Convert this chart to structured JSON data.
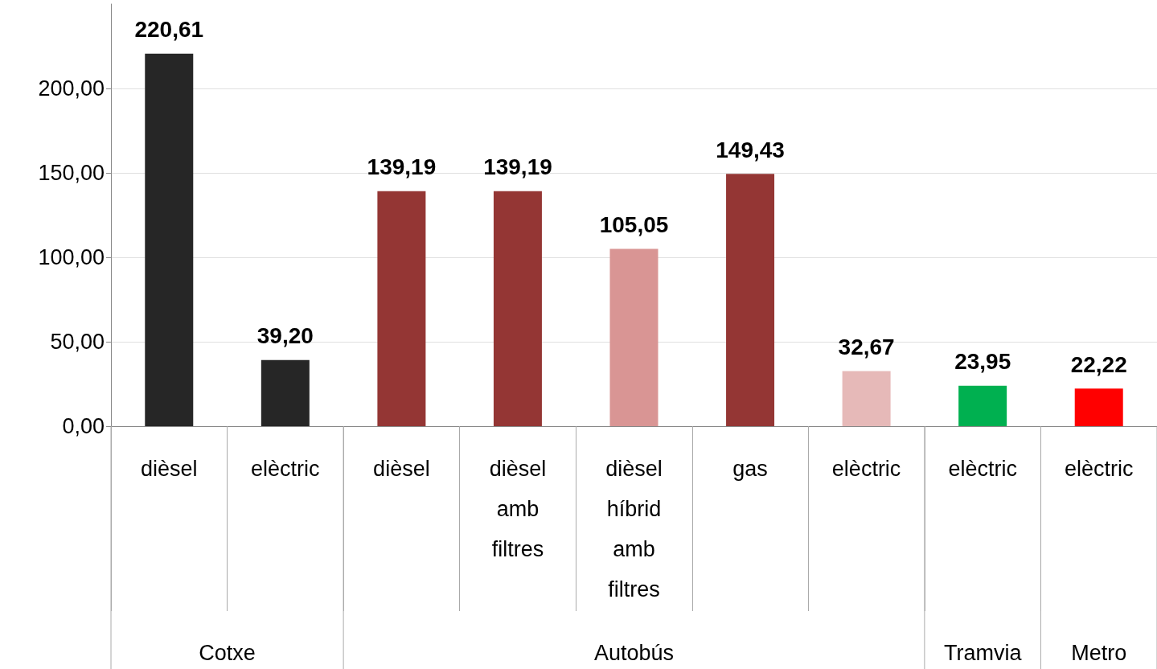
{
  "chart_data": {
    "type": "bar",
    "categories": [
      "dièsel",
      "elèctric",
      "dièsel",
      "dièsel amb filtres",
      "dièsel híbrid amb filtres",
      "gas",
      "elèctric",
      "elèctric",
      "elèctric"
    ],
    "values": [
      220.61,
      39.2,
      139.19,
      139.19,
      105.05,
      149.43,
      32.67,
      23.95,
      22.22
    ],
    "value_labels": [
      "220,61",
      "39,20",
      "139,19",
      "139,19",
      "105,05",
      "149,43",
      "32,67",
      "23,95",
      "22,22"
    ],
    "colors": [
      "#262626",
      "#262626",
      "#943634",
      "#943634",
      "#d99594",
      "#943634",
      "#e6b9b8",
      "#00b050",
      "#ff0000"
    ],
    "ylim": [
      0,
      250
    ],
    "yticks": [
      {
        "value": 0,
        "label": "0,00"
      },
      {
        "value": 50,
        "label": "50,00"
      },
      {
        "value": 100,
        "label": "100,00"
      },
      {
        "value": 150,
        "label": "150,00"
      },
      {
        "value": 200,
        "label": "200,00"
      }
    ],
    "grid": "y",
    "annotations": [
      "Cotxe",
      "Autobús",
      "Tramvia",
      "Metro"
    ]
  }
}
